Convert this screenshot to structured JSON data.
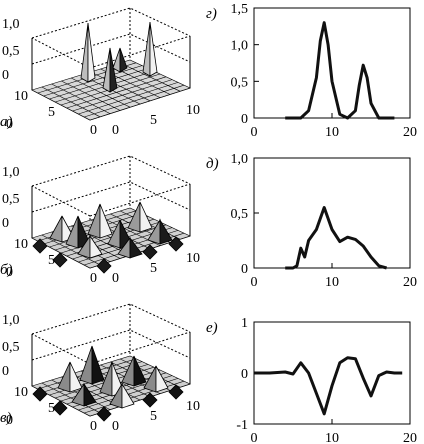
{
  "figure": {
    "left_panels": [
      {
        "panel_label": "а)",
        "z_ticks": [
          "1,0",
          "0,5",
          "0"
        ],
        "x_ticks": [
          "0",
          "5",
          "10"
        ],
        "y_ticks": [
          "10",
          "5",
          "0"
        ],
        "surface": "spikes",
        "colors": {
          "surface_light": "#d8d8d8",
          "surface_dark": "#222222",
          "spike": "#bdbdbd"
        }
      },
      {
        "panel_label": "б)",
        "z_ticks": [
          "1,0",
          "0,5",
          "0"
        ],
        "x_ticks": [
          "0",
          "5",
          "10"
        ],
        "y_ticks": [
          "10",
          "5",
          "0"
        ],
        "surface": "moderate-peaks",
        "colors": {
          "surface_light": "#d0d0d0",
          "surface_dark": "#1a1a1a",
          "spike": "#9a9a9a"
        }
      },
      {
        "panel_label": "в)",
        "z_ticks": [
          "1,0",
          "0,5",
          "0"
        ],
        "x_ticks": [
          "0",
          "5",
          "10"
        ],
        "y_ticks": [
          "10",
          "5",
          "0"
        ],
        "surface": "mixed-peaks-troughs",
        "colors": {
          "surface_light": "#cfcfcf",
          "surface_dark": "#111111",
          "spike": "#8a8a8a"
        }
      }
    ],
    "right_panels": [
      {
        "panel_label": "г)",
        "y_ticks": [
          "1,5",
          "1,0",
          "0,5",
          "0"
        ],
        "x_ticks": [
          "0",
          "10",
          "20"
        ],
        "chart_data": {
          "type": "line",
          "xlim": [
            0,
            20
          ],
          "ylim": [
            0,
            1.5
          ],
          "series": [
            {
              "x": [
                4,
                6,
                7,
                8,
                8.5,
                9,
                9.5,
                10,
                11,
                12,
                13,
                13.5,
                14,
                14.5,
                15,
                16,
                18
              ],
              "y": [
                0,
                0,
                0.1,
                0.55,
                1.05,
                1.3,
                1.0,
                0.5,
                0.05,
                0,
                0.1,
                0.45,
                0.72,
                0.55,
                0.2,
                0,
                0
              ]
            }
          ]
        }
      },
      {
        "panel_label": "д)",
        "y_ticks": [
          "1,0",
          "0,5",
          "0"
        ],
        "x_ticks": [
          "0",
          "10",
          "20"
        ],
        "chart_data": {
          "type": "line",
          "xlim": [
            0,
            20
          ],
          "ylim": [
            0,
            1.0
          ],
          "series": [
            {
              "x": [
                4,
                5,
                5.5,
                6,
                6.5,
                7,
                8,
                9,
                9.5,
                10,
                11,
                12,
                13,
                14,
                15,
                16,
                17
              ],
              "y": [
                0,
                0,
                0.02,
                0.18,
                0.1,
                0.25,
                0.35,
                0.55,
                0.45,
                0.35,
                0.24,
                0.28,
                0.26,
                0.2,
                0.1,
                0.02,
                0
              ]
            }
          ]
        }
      },
      {
        "panel_label": "е)",
        "y_ticks": [
          "1",
          "0",
          "-1"
        ],
        "x_ticks": [
          "0",
          "10",
          "20"
        ],
        "chart_data": {
          "type": "line",
          "xlim": [
            0,
            20
          ],
          "ylim": [
            -1,
            1
          ],
          "series": [
            {
              "x": [
                0,
                2,
                4,
                5,
                6,
                7,
                8,
                9,
                10,
                11,
                12,
                13,
                14,
                15,
                16,
                17,
                18,
                19
              ],
              "y": [
                0,
                0,
                0.02,
                -0.02,
                0.2,
                0.0,
                -0.4,
                -0.8,
                -0.25,
                0.2,
                0.3,
                0.28,
                -0.1,
                -0.45,
                -0.05,
                0.02,
                0,
                0
              ]
            }
          ]
        }
      }
    ]
  }
}
